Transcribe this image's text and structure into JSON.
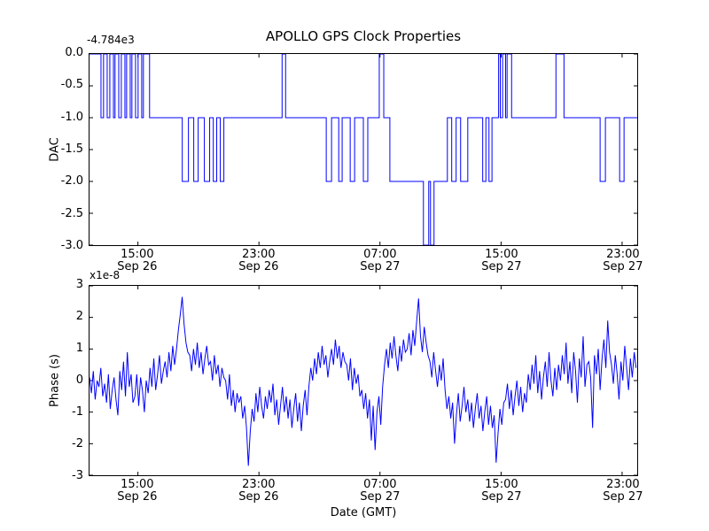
{
  "figure": {
    "title": "APOLLO GPS Clock Properties",
    "xlabel": "Date (GMT)",
    "background": "#ffffff",
    "line_color": "#0000ff",
    "axes_border_color": "#000000"
  },
  "chart_data": [
    {
      "type": "line",
      "series_type": "step",
      "ylabel": "DAC",
      "y_offset_text": "-4.784e3",
      "y_range": [
        -3,
        0
      ],
      "y_ticks": [
        0,
        -0.5,
        -1,
        -1.5,
        -2,
        -2.5,
        -3
      ],
      "y_tick_labels": [
        "0.0",
        "-0.5",
        "-1.0",
        "-1.5",
        "-2.0",
        "-2.5",
        "-3.0"
      ],
      "x_range": [
        0,
        36.2
      ],
      "x_ticks": [
        3.2,
        11.2,
        19.2,
        27.2,
        35.2
      ],
      "x_tick_labels": [
        [
          "15:00",
          "Sep 26"
        ],
        [
          "23:00",
          "Sep 26"
        ],
        [
          "07:00",
          "Sep 27"
        ],
        [
          "15:00",
          "Sep 27"
        ],
        [
          "23:00",
          "Sep 27"
        ]
      ],
      "grid": false,
      "steps": [
        [
          0,
          0
        ],
        [
          0.76,
          -1
        ],
        [
          0.93,
          0
        ],
        [
          1.17,
          -1
        ],
        [
          1.34,
          0
        ],
        [
          1.58,
          -1
        ],
        [
          1.69,
          0
        ],
        [
          1.93,
          -1
        ],
        [
          2.1,
          0
        ],
        [
          2.34,
          -1
        ],
        [
          2.45,
          0
        ],
        [
          2.69,
          -1
        ],
        [
          2.8,
          0
        ],
        [
          3.04,
          -1
        ],
        [
          3.21,
          0
        ],
        [
          3.45,
          -1
        ],
        [
          3.56,
          0
        ],
        [
          3.97,
          -1
        ],
        [
          6.13,
          -2
        ],
        [
          6.54,
          -1
        ],
        [
          6.89,
          -2
        ],
        [
          7.18,
          -1
        ],
        [
          7.59,
          -2
        ],
        [
          7.94,
          -1
        ],
        [
          8.18,
          -2
        ],
        [
          8.41,
          -1
        ],
        [
          8.64,
          -2
        ],
        [
          8.88,
          -1
        ],
        [
          12.73,
          0
        ],
        [
          12.96,
          -1
        ],
        [
          15.65,
          -2
        ],
        [
          16.0,
          -1
        ],
        [
          16.47,
          -2
        ],
        [
          16.7,
          -1
        ],
        [
          17.23,
          -2
        ],
        [
          17.52,
          -1
        ],
        [
          18.1,
          -2
        ],
        [
          18.39,
          -1
        ],
        [
          19.15,
          0
        ],
        [
          19.45,
          -1
        ],
        [
          19.85,
          -2
        ],
        [
          22.07,
          -3
        ],
        [
          22.42,
          -2
        ],
        [
          22.54,
          -3
        ],
        [
          22.77,
          -2
        ],
        [
          23.65,
          -1
        ],
        [
          23.94,
          -2
        ],
        [
          24.23,
          -1
        ],
        [
          24.53,
          -2
        ],
        [
          25.0,
          -1
        ],
        [
          25.99,
          -2
        ],
        [
          26.2,
          -1
        ],
        [
          26.4,
          -2
        ],
        [
          26.6,
          -1
        ],
        [
          27.04,
          0
        ],
        [
          27.15,
          -1
        ],
        [
          27.3,
          0
        ],
        [
          27.5,
          -1
        ],
        [
          27.6,
          0
        ],
        [
          27.9,
          -1
        ],
        [
          30.83,
          0
        ],
        [
          31.36,
          -1
        ],
        [
          33.75,
          -2
        ],
        [
          34.1,
          -1
        ],
        [
          35.04,
          -2
        ],
        [
          35.33,
          -1
        ]
      ]
    },
    {
      "type": "line",
      "series_type": "line",
      "ylabel": "Phase (s)",
      "y_multiplier_text": "x1e-8",
      "y_range": [
        -3,
        3
      ],
      "y_ticks": [
        3,
        2,
        1,
        0,
        -1,
        -2,
        -3
      ],
      "y_tick_labels": [
        "3",
        "2",
        "1",
        "0",
        "-1",
        "-2",
        "-3"
      ],
      "x_range": [
        0,
        36.2
      ],
      "x_ticks": [
        3.2,
        11.2,
        19.2,
        27.2,
        35.2
      ],
      "x_tick_labels": [
        [
          "15:00",
          "Sep 26"
        ],
        [
          "23:00",
          "Sep 26"
        ],
        [
          "07:00",
          "Sep 27"
        ],
        [
          "15:00",
          "Sep 27"
        ],
        [
          "23:00",
          "Sep 27"
        ]
      ],
      "grid": false,
      "x_start": 0,
      "x_step": 0.125,
      "values": [
        0.1,
        -0.4,
        0.3,
        -0.6,
        0.0,
        -0.2,
        0.4,
        -0.5,
        -0.1,
        -0.7,
        0.2,
        -0.9,
        -0.3,
        0.1,
        -0.6,
        -1.1,
        0.3,
        -0.3,
        0.6,
        -0.5,
        0.9,
        -0.2,
        0.2,
        -0.7,
        -0.5,
        0.2,
        -0.8,
        0.1,
        -0.3,
        -1.0,
        0.0,
        -0.4,
        0.4,
        -0.2,
        0.7,
        -0.3,
        0.2,
        0.8,
        -0.1,
        0.3,
        0.6,
        0.1,
        0.9,
        0.3,
        1.1,
        0.5,
        1.0,
        1.6,
        2.1,
        2.65,
        1.8,
        1.2,
        0.9,
        0.8,
        0.3,
        1.0,
        0.5,
        1.2,
        0.4,
        0.9,
        0.2,
        0.7,
        1.1,
        0.5,
        0.6,
        0.0,
        0.8,
        0.2,
        0.5,
        -0.2,
        0.4,
        0.1,
        0.0,
        -0.6,
        0.2,
        -0.8,
        -0.3,
        -1.0,
        -0.4,
        -0.7,
        -0.5,
        -1.2,
        -0.8,
        -1.5,
        -2.7,
        -1.6,
        -0.9,
        -1.3,
        -0.4,
        -1.0,
        -0.2,
        -0.8,
        -1.2,
        -0.5,
        -0.9,
        -0.3,
        -0.7,
        -0.1,
        -1.1,
        -0.6,
        -1.4,
        -0.8,
        -0.2,
        -1.0,
        -0.5,
        -1.2,
        -0.6,
        -1.5,
        -0.9,
        -0.4,
        -1.3,
        -0.7,
        -1.6,
        -0.8,
        -0.3,
        -1.1,
        -0.2,
        0.4,
        0.0,
        0.7,
        0.2,
        0.9,
        0.4,
        1.1,
        0.5,
        0.8,
        0.1,
        0.6,
        1.0,
        0.5,
        1.3,
        0.7,
        1.1,
        0.4,
        0.9,
        0.6,
        0.5,
        0.0,
        0.7,
        -0.3,
        0.4,
        -0.1,
        0.2,
        -0.5,
        -0.3,
        -0.9,
        -0.4,
        -1.2,
        -0.6,
        -1.9,
        -0.8,
        -2.2,
        -1.0,
        -0.5,
        -1.4,
        -0.2,
        0.5,
        1.0,
        0.4,
        1.2,
        0.7,
        1.4,
        0.8,
        0.3,
        1.1,
        0.6,
        1.3,
        0.9,
        1.0,
        1.5,
        0.8,
        1.6,
        1.1,
        1.9,
        2.6,
        1.4,
        0.9,
        1.7,
        1.2,
        0.8,
        0.6,
        0.1,
        0.9,
        0.3,
        -0.2,
        0.5,
        0.0,
        0.7,
        -0.3,
        -0.9,
        -0.5,
        -1.2,
        -0.7,
        -2.0,
        -1.1,
        -0.4,
        -1.3,
        -0.8,
        -0.2,
        -1.0,
        -0.6,
        -1.3,
        -0.7,
        -1.5,
        -0.9,
        -0.4,
        -1.2,
        -0.8,
        -1.6,
        -1.0,
        -0.5,
        -1.4,
        -0.8,
        -1.5,
        -1.1,
        -2.6,
        -1.7,
        -0.9,
        -1.4,
        -0.7,
        -0.6,
        -0.1,
        -0.9,
        -0.3,
        -1.1,
        -0.5,
        0.0,
        -0.8,
        -0.2,
        -1.0,
        -0.4,
        -0.7,
        0.2,
        -0.3,
        0.5,
        -0.1,
        0.8,
        -0.4,
        0.3,
        -0.6,
        0.1,
        0.6,
        -0.2,
        0.9,
        0.0,
        -0.5,
        0.4,
        -0.3,
        0.5,
        0.0,
        0.8,
        0.2,
        1.2,
        -0.1,
        0.6,
        -0.4,
        0.9,
        0.3,
        -0.7,
        0.7,
        0.1,
        1.4,
        -0.2,
        0.5,
        0.6,
        0.1,
        -1.5,
        0.8,
        0.2,
        1.0,
        -0.3,
        0.7,
        1.3,
        0.4,
        1.9,
        0.9,
        0.5,
        -0.1,
        0.8,
        0.2,
        -0.6,
        0.6,
        0.0,
        1.1,
        0.4,
        -0.3,
        0.7,
        0.1,
        0.9,
        0.4
      ]
    }
  ]
}
